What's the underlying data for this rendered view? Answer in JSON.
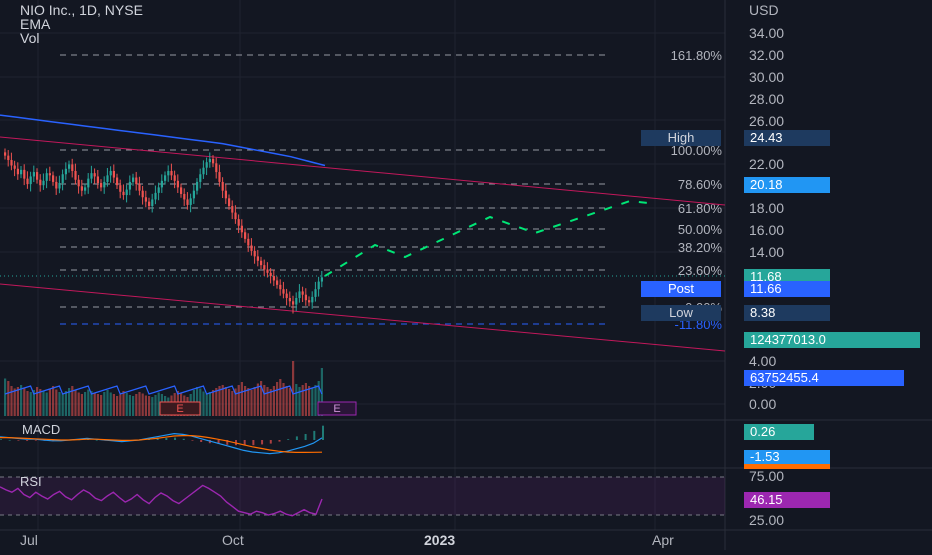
{
  "header": {
    "symbol": "NIO Inc., 1D, NYSE",
    "indicator_ema": "EMA",
    "indicator_vol": "Vol"
  },
  "colors": {
    "background": "#131722",
    "grid": "#1f2330",
    "candle_up": "#26a69a",
    "candle_down": "#ef5350",
    "ema": "#2962ff",
    "trendline": "#c2185b",
    "projection": "#00e676",
    "rsi": "#9c27b0",
    "macd_line": "#2196f3",
    "signal_line": "#ff6d00"
  },
  "price_axis": {
    "currency": "USD",
    "ticks": [
      "34.00",
      "32.00",
      "30.00",
      "28.00",
      "26.00",
      "22.00",
      "18.00",
      "16.00",
      "14.00",
      "4.00",
      "2.00",
      "0.00"
    ]
  },
  "time_axis": {
    "labels": [
      "Jul",
      "Oct",
      "2023",
      "Apr"
    ]
  },
  "fibonacci": {
    "levels": [
      {
        "label": "161.80%"
      },
      {
        "label": "100.00%"
      },
      {
        "label": "78.60%"
      },
      {
        "label": "61.80%"
      },
      {
        "label": "50.00%"
      },
      {
        "label": "38.20%"
      },
      {
        "label": "23.60%"
      },
      {
        "label": "0.00%"
      },
      {
        "label": "-11.80%"
      }
    ]
  },
  "tags": {
    "high_label": "High",
    "high_value": "24.43",
    "fib_value": "20.18",
    "last_price": "11.68",
    "post_label": "Post",
    "post_value": "11.66",
    "low_label": "Low",
    "low_value": "8.38",
    "volume_value": "124377013.0",
    "volume_ma": "63752455.4",
    "macd_value": "0.26",
    "macd_signal": "-1.53",
    "rsi_value": "46.15"
  },
  "panes": {
    "macd_title": "MACD",
    "rsi_title": "RSI",
    "rsi_ticks": [
      "75.00",
      "25.00"
    ],
    "earnings_marker": "E"
  },
  "chart_data": {
    "type": "line",
    "title": "NIO Inc., 1D, NYSE",
    "xlabel": "",
    "ylabel": "",
    "ylim": [
      0,
      35
    ],
    "price_closes": [
      22.8,
      22.4,
      21.9,
      21.6,
      21.1,
      21.5,
      20.7,
      20.2,
      20.9,
      21.3,
      20.6,
      20.1,
      20.5,
      21.2,
      21.0,
      20.4,
      19.8,
      20.3,
      21.1,
      21.6,
      22.0,
      21.4,
      20.6,
      20.0,
      19.6,
      19.9,
      20.7,
      21.2,
      20.9,
      20.3,
      19.9,
      20.4,
      21.0,
      21.4,
      20.8,
      20.1,
      19.5,
      19.2,
      19.7,
      20.4,
      20.8,
      20.2,
      19.6,
      19.0,
      18.6,
      18.2,
      18.8,
      19.4,
      19.9,
      20.5,
      21.0,
      21.4,
      21.0,
      20.5,
      19.9,
      19.3,
      18.8,
      18.3,
      18.9,
      19.6,
      20.4,
      21.1,
      21.7,
      22.2,
      22.5,
      22.1,
      21.3,
      20.4,
      19.6,
      18.9,
      18.2,
      17.6,
      17.0,
      16.4,
      15.8,
      15.2,
      14.6,
      14.1,
      13.6,
      13.2,
      12.8,
      12.4,
      12.1,
      11.8,
      11.4,
      11.0,
      10.6,
      10.2,
      9.8,
      9.5,
      9.2,
      9.8,
      10.4,
      10.1,
      9.6,
      9.4,
      9.9,
      10.6,
      11.3,
      11.68
    ],
    "volume_bars": [
      75,
      70,
      60,
      55,
      58,
      62,
      55,
      50,
      48,
      52,
      58,
      54,
      50,
      47,
      55,
      60,
      53,
      48,
      45,
      50,
      56,
      60,
      52,
      47,
      44,
      48,
      53,
      50,
      46,
      44,
      42,
      48,
      52,
      47,
      44,
      40,
      43,
      50,
      46,
      42,
      40,
      44,
      48,
      45,
      41,
      40,
      38,
      42,
      47,
      44,
      40,
      37,
      41,
      46,
      50,
      45,
      41,
      38,
      44,
      52,
      58,
      55,
      49,
      45,
      48,
      52,
      56,
      60,
      62,
      58,
      54,
      50,
      55,
      62,
      68,
      60,
      56,
      52,
      58,
      65,
      70,
      62,
      58,
      54,
      60,
      68,
      74,
      66,
      60,
      56,
      110,
      64,
      58,
      62,
      66,
      60,
      56,
      62,
      70,
      96
    ],
    "ema_values": [
      26.5,
      26.3,
      26.1,
      25.9,
      25.7,
      25.5,
      25.3,
      25.1,
      24.9,
      24.7,
      24.5,
      24.3,
      24.1,
      23.9,
      23.6,
      23.3,
      23.0,
      22.7,
      22.3,
      21.9
    ],
    "rsi_values": [
      62,
      58,
      55,
      60,
      52,
      48,
      55,
      50,
      46,
      52,
      56,
      49,
      45,
      52,
      58,
      54,
      47,
      44,
      50,
      55,
      48,
      42,
      46,
      52,
      45,
      40,
      48,
      54,
      50,
      44,
      40,
      46,
      52,
      58,
      64,
      60,
      55,
      50,
      42,
      36,
      30,
      28,
      26,
      30,
      28,
      25,
      27,
      30,
      26,
      24,
      28,
      32,
      28,
      26,
      46
    ],
    "macd_values": [
      0.4,
      0.3,
      0.2,
      0.1,
      0.1,
      0.0,
      -0.1,
      -0.1,
      0.0,
      0.1,
      0.2,
      0.1,
      0.0,
      -0.1,
      -0.2,
      -0.1,
      0.0,
      0.2,
      0.4,
      0.6,
      0.8,
      0.7,
      0.5,
      0.2,
      -0.1,
      -0.4,
      -0.7,
      -1.0,
      -1.3,
      -1.5,
      -1.6,
      -1.7,
      -1.6,
      -1.4,
      -1.1,
      -0.8,
      -0.4,
      0.26
    ],
    "signal_values": [
      0.3,
      0.3,
      0.25,
      0.2,
      0.15,
      0.1,
      0.05,
      0.0,
      0.0,
      0.05,
      0.1,
      0.1,
      0.05,
      0.0,
      -0.05,
      -0.05,
      0.0,
      0.1,
      0.2,
      0.35,
      0.5,
      0.55,
      0.55,
      0.45,
      0.3,
      0.1,
      -0.1,
      -0.35,
      -0.6,
      -0.85,
      -1.05,
      -1.25,
      -1.4,
      -1.5,
      -1.55,
      -1.55,
      -1.54,
      -1.53
    ]
  }
}
